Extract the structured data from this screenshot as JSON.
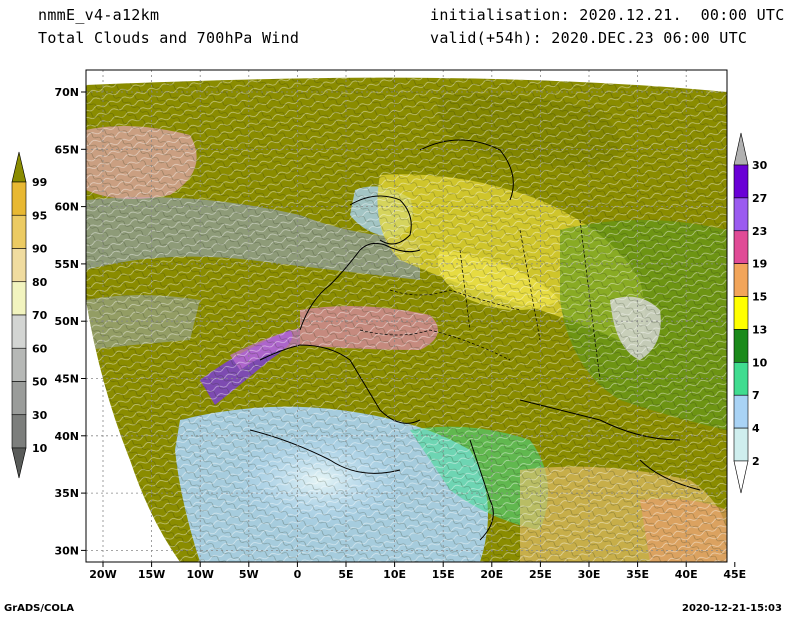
{
  "header": {
    "model": "nmmE_v4-a12km",
    "product": "Total Clouds and 700hPa Wind",
    "init": "initialisation: 2020.12.21.  00:00 UTC",
    "valid": "valid(+54h): 2020.DEC.23 06:00 UTC"
  },
  "axes": {
    "lon_labels": [
      "20W",
      "15W",
      "10W",
      "5W",
      "0",
      "5E",
      "10E",
      "15E",
      "20E",
      "25E",
      "30E",
      "35E",
      "40E",
      "45E"
    ],
    "lat_labels": [
      "70N",
      "65N",
      "60N",
      "55N",
      "50N",
      "45N",
      "40N",
      "35N",
      "30N"
    ]
  },
  "legend_clouds": {
    "levels": [
      "99",
      "95",
      "90",
      "80",
      "70",
      "60",
      "50",
      "30",
      "10"
    ],
    "colors": [
      "#8a8c00",
      "#e8b832",
      "#eccb63",
      "#f0dca0",
      "#f2f4bf",
      "#d3d5d3",
      "#b6b8b6",
      "#9a9c9a",
      "#7c7e7c",
      "#595b59"
    ]
  },
  "legend_wind": {
    "levels": [
      "30",
      "27",
      "23",
      "19",
      "15",
      "13",
      "10",
      "7",
      "4",
      "2"
    ],
    "colors": [
      "#b0b0b0",
      "#6a00d6",
      "#9b5bf0",
      "#e04b96",
      "#f2a55a",
      "#ffff00",
      "#1a8a1a",
      "#40dc90",
      "#a9d3f5",
      "#cfeeee"
    ]
  },
  "footer": {
    "left": "GrADS/COLA",
    "right": "2020-12-21-15:03"
  }
}
